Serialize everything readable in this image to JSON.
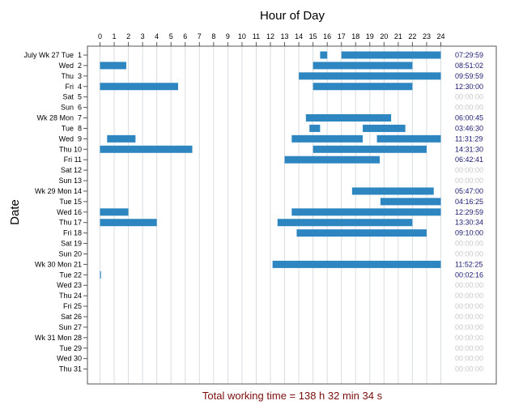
{
  "chart_data": {
    "type": "bar",
    "title": "Hour of Day",
    "ylabel": "Date",
    "xlim": [
      0,
      24
    ],
    "x_ticks": [
      "0",
      "1",
      "2",
      "3",
      "4",
      "5",
      "6",
      "7",
      "8",
      "9",
      "10",
      "11",
      "12",
      "13",
      "14",
      "15",
      "16",
      "17",
      "18",
      "19",
      "20",
      "21",
      "22",
      "23",
      "24"
    ],
    "colors": {
      "bar": "#2e86c1",
      "duration_active": "#1a1a6e",
      "duration_zero": "#c8c8c8",
      "footer": "#7b0d0d",
      "grid": "#d8dde2"
    },
    "rows": [
      {
        "label": "July Wk 27 Tue  1",
        "duration": "07:29:59",
        "segments": [
          [
            15.5,
            16.0
          ],
          [
            17.0,
            24.0
          ]
        ]
      },
      {
        "label": "Wed  2",
        "duration": "08:51:02",
        "segments": [
          [
            0.0,
            1.85
          ],
          [
            15.0,
            22.0
          ]
        ]
      },
      {
        "label": "Thu  3",
        "duration": "09:59:59",
        "segments": [
          [
            14.0,
            24.0
          ]
        ]
      },
      {
        "label": "Fri  4",
        "duration": "12:30:00",
        "segments": [
          [
            0.0,
            5.5
          ],
          [
            15.0,
            22.0
          ]
        ]
      },
      {
        "label": "Sat  5",
        "duration": "00:00:00",
        "segments": []
      },
      {
        "label": "Sun  6",
        "duration": "00:00:00",
        "segments": []
      },
      {
        "label": "Wk 28 Mon  7",
        "duration": "06:00:45",
        "segments": [
          [
            14.5,
            20.5
          ]
        ]
      },
      {
        "label": "Tue  8",
        "duration": "03:46:30",
        "segments": [
          [
            14.75,
            15.5
          ],
          [
            18.5,
            21.5
          ]
        ]
      },
      {
        "label": "Wed  9",
        "duration": "11:31:29",
        "segments": [
          [
            0.5,
            2.5
          ],
          [
            13.5,
            18.5
          ],
          [
            19.5,
            24.0
          ]
        ]
      },
      {
        "label": "Thu 10",
        "duration": "14:31:30",
        "segments": [
          [
            0.0,
            6.5
          ],
          [
            15.0,
            23.0
          ]
        ]
      },
      {
        "label": "Fri 11",
        "duration": "06:42:41",
        "segments": [
          [
            13.0,
            19.7
          ]
        ]
      },
      {
        "label": "Sat 12",
        "duration": "00:00:00",
        "segments": []
      },
      {
        "label": "Sun 13",
        "duration": "00:00:00",
        "segments": []
      },
      {
        "label": "Wk 29 Mon 14",
        "duration": "05:47:00",
        "segments": [
          [
            17.75,
            23.5
          ]
        ]
      },
      {
        "label": "Tue 15",
        "duration": "04:16:25",
        "segments": [
          [
            19.75,
            24.0
          ]
        ]
      },
      {
        "label": "Wed 16",
        "duration": "12:29:59",
        "segments": [
          [
            0.0,
            2.0
          ],
          [
            13.5,
            24.0
          ]
        ]
      },
      {
        "label": "Thu 17",
        "duration": "13:30:34",
        "segments": [
          [
            0.0,
            4.0
          ],
          [
            12.5,
            22.0
          ]
        ]
      },
      {
        "label": "Fri 18",
        "duration": "09:10:00",
        "segments": [
          [
            13.85,
            23.0
          ]
        ]
      },
      {
        "label": "Sat 19",
        "duration": "00:00:00",
        "segments": []
      },
      {
        "label": "Sun 20",
        "duration": "00:00:00",
        "segments": []
      },
      {
        "label": "Wk 30 Mon 21",
        "duration": "11:52:25",
        "segments": [
          [
            12.15,
            24.0
          ]
        ]
      },
      {
        "label": "Tue 22",
        "duration": "00:02:16",
        "segments": [
          [
            0.0,
            0.04
          ]
        ]
      },
      {
        "label": "Wed 23",
        "duration": "00:00:00",
        "segments": []
      },
      {
        "label": "Thu 24",
        "duration": "00:00:00",
        "segments": []
      },
      {
        "label": "Fri 25",
        "duration": "00:00:00",
        "segments": []
      },
      {
        "label": "Sat 26",
        "duration": "00:00:00",
        "segments": []
      },
      {
        "label": "Sun 27",
        "duration": "00:00:00",
        "segments": []
      },
      {
        "label": "Wk 31 Mon 28",
        "duration": "00:00:00",
        "segments": []
      },
      {
        "label": "Tue 29",
        "duration": "00:00:00",
        "segments": []
      },
      {
        "label": "Wed 30",
        "duration": "00:00:00",
        "segments": []
      },
      {
        "label": "Thu 31",
        "duration": "00:00:00",
        "segments": []
      }
    ],
    "footer": "Total working time = 138 h 32 min 34 s"
  }
}
